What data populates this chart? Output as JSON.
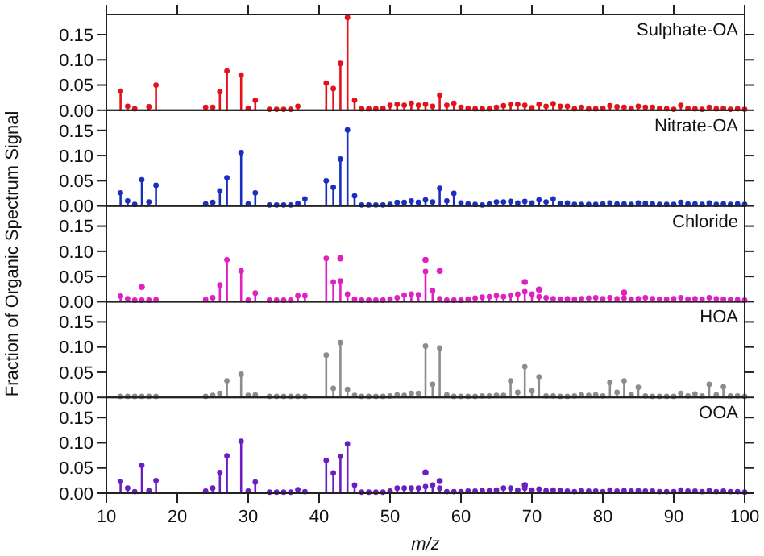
{
  "chart_data": [
    {
      "type": "lollipop",
      "title": "Sulphate-OA",
      "ylabel": "Fraction of Organic Spectrum Signal",
      "marker": "circle",
      "tick_labels": "y",
      "xlim": [
        10,
        100
      ],
      "xticks": [
        10,
        20,
        30,
        40,
        50,
        60,
        70,
        80,
        90,
        100
      ],
      "ylim": [
        0,
        0.19
      ],
      "yticks": [
        {
          "value": 0,
          "label": "0.00"
        },
        {
          "value": 0.05,
          "label": "0.05"
        },
        {
          "value": 0.1,
          "label": "0.10"
        },
        {
          "value": 0.15,
          "label": "0.15"
        }
      ],
      "x": [
        12,
        13,
        14,
        16,
        17,
        24,
        25,
        26,
        27,
        29,
        30,
        31,
        33,
        34,
        35,
        36,
        37,
        41,
        42,
        43,
        44,
        45,
        46,
        47,
        48,
        49,
        50,
        51,
        52,
        53,
        54,
        55,
        56,
        57,
        58,
        59,
        60,
        61,
        62,
        63,
        64,
        65,
        66,
        67,
        68,
        69,
        70,
        71,
        72,
        73,
        74,
        75,
        76,
        77,
        78,
        79,
        80,
        81,
        82,
        83,
        84,
        85,
        86,
        87,
        88,
        89,
        90,
        91,
        92,
        93,
        94,
        95,
        96,
        97,
        98,
        99,
        100
      ],
      "series": [
        {
          "color": "#e3121b",
          "values": [
            0.038,
            0.008,
            0.003,
            0.007,
            0.05,
            0.006,
            0.006,
            0.037,
            0.078,
            0.07,
            0.004,
            0.02,
            0.002,
            0.002,
            0.002,
            0.002,
            0.008,
            0.054,
            0.043,
            0.093,
            0.184,
            0.02,
            0.003,
            0.003,
            0.003,
            0.004,
            0.01,
            0.012,
            0.01,
            0.014,
            0.01,
            0.012,
            0.008,
            0.03,
            0.01,
            0.014,
            0.006,
            0.004,
            0.003,
            0.003,
            0.003,
            0.006,
            0.009,
            0.012,
            0.012,
            0.01,
            0.005,
            0.012,
            0.008,
            0.013,
            0.008,
            0.008,
            0.003,
            0.006,
            0.003,
            0.003,
            0.004,
            0.009,
            0.007,
            0.006,
            0.004,
            0.008,
            0.006,
            0.006,
            0.004,
            0.003,
            0.002,
            0.01,
            0.004,
            0.003,
            0.002,
            0.006,
            0.003,
            0.004,
            0.002,
            0.003,
            0.002
          ]
        }
      ]
    },
    {
      "type": "lollipop",
      "title": "Nitrate-OA",
      "marker": "circle",
      "tick_labels": "y",
      "xlim": [
        10,
        100
      ],
      "xticks": [
        10,
        20,
        30,
        40,
        50,
        60,
        70,
        80,
        90,
        100
      ],
      "ylim": [
        0,
        0.19
      ],
      "yticks": [
        {
          "value": 0,
          "label": "0.00"
        },
        {
          "value": 0.05,
          "label": "0.05"
        },
        {
          "value": 0.1,
          "label": "0.10"
        },
        {
          "value": 0.15,
          "label": "0.15"
        }
      ],
      "x": [
        12,
        13,
        14,
        15,
        16,
        17,
        24,
        25,
        26,
        27,
        29,
        30,
        31,
        33,
        34,
        35,
        36,
        37,
        38,
        41,
        42,
        43,
        44,
        45,
        46,
        47,
        48,
        49,
        50,
        51,
        52,
        53,
        54,
        55,
        56,
        57,
        58,
        59,
        60,
        61,
        62,
        63,
        64,
        65,
        66,
        67,
        68,
        69,
        70,
        71,
        72,
        73,
        74,
        75,
        76,
        77,
        78,
        79,
        80,
        81,
        82,
        83,
        84,
        85,
        86,
        87,
        88,
        89,
        90,
        91,
        92,
        93,
        94,
        95,
        96,
        97,
        98,
        99,
        100
      ],
      "series": [
        {
          "color": "#1a2fbf",
          "values": [
            0.026,
            0.01,
            0.003,
            0.052,
            0.008,
            0.041,
            0.004,
            0.007,
            0.03,
            0.056,
            0.106,
            0.004,
            0.026,
            0.002,
            0.002,
            0.002,
            0.002,
            0.005,
            0.014,
            0.05,
            0.037,
            0.093,
            0.151,
            0.02,
            0.002,
            0.002,
            0.002,
            0.002,
            0.003,
            0.007,
            0.007,
            0.01,
            0.007,
            0.012,
            0.008,
            0.035,
            0.01,
            0.025,
            0.006,
            0.004,
            0.003,
            0.002,
            0.004,
            0.008,
            0.008,
            0.009,
            0.006,
            0.009,
            0.006,
            0.012,
            0.008,
            0.014,
            0.005,
            0.006,
            0.003,
            0.003,
            0.003,
            0.003,
            0.004,
            0.006,
            0.004,
            0.004,
            0.003,
            0.006,
            0.005,
            0.004,
            0.003,
            0.003,
            0.003,
            0.007,
            0.004,
            0.004,
            0.003,
            0.006,
            0.003,
            0.004,
            0.003,
            0.004,
            0.003
          ]
        }
      ]
    },
    {
      "type": "lollipop",
      "title": "Chloride",
      "marker": "circle",
      "tick_labels": "y",
      "xlim": [
        10,
        100
      ],
      "xticks": [
        10,
        20,
        30,
        40,
        50,
        60,
        70,
        80,
        90,
        100
      ],
      "ylim": [
        0,
        0.19
      ],
      "yticks": [
        {
          "value": 0,
          "label": "0.00"
        },
        {
          "value": 0.05,
          "label": "0.05"
        },
        {
          "value": 0.1,
          "label": "0.10"
        },
        {
          "value": 0.15,
          "label": "0.15"
        }
      ],
      "x": [
        12,
        13,
        14,
        15,
        16,
        17,
        24,
        25,
        26,
        27,
        29,
        30,
        31,
        33,
        34,
        35,
        36,
        37,
        38,
        41,
        42,
        43,
        44,
        45,
        46,
        47,
        48,
        49,
        50,
        51,
        52,
        53,
        54,
        55,
        56,
        57,
        58,
        59,
        60,
        61,
        62,
        63,
        64,
        65,
        66,
        67,
        68,
        69,
        70,
        71,
        72,
        73,
        74,
        75,
        76,
        77,
        78,
        79,
        80,
        81,
        82,
        83,
        84,
        85,
        86,
        87,
        88,
        89,
        90,
        91,
        92,
        93,
        94,
        95,
        96,
        97,
        98,
        99,
        100
      ],
      "series": [
        {
          "color": "#e020c0",
          "values": [
            0.011,
            0.006,
            0.003,
            0.003,
            0.003,
            0.004,
            0.004,
            0.008,
            0.033,
            0.083,
            0.061,
            0.003,
            0.017,
            0.003,
            0.003,
            0.003,
            0.003,
            0.012,
            0.012,
            0.086,
            0.039,
            0.041,
            0.015,
            0.005,
            0.003,
            0.003,
            0.003,
            0.003,
            0.005,
            0.008,
            0.013,
            0.015,
            0.014,
            0.06,
            0.022,
            0.006,
            0.003,
            0.003,
            0.003,
            0.005,
            0.007,
            0.009,
            0.01,
            0.012,
            0.01,
            0.013,
            0.015,
            0.02,
            0.015,
            0.01,
            0.008,
            0.006,
            0.005,
            0.006,
            0.005,
            0.006,
            0.007,
            0.008,
            0.006,
            0.008,
            0.006,
            0.007,
            0.005,
            0.006,
            0.008,
            0.006,
            0.005,
            0.005,
            0.006,
            0.008,
            0.005,
            0.006,
            0.005,
            0.008,
            0.006,
            0.005,
            0.004,
            0.004,
            0.003
          ]
        },
        {
          "type": "scatter",
          "color": "#e020c0",
          "x": [
            15,
            43,
            55,
            57,
            69,
            71,
            83
          ],
          "values": [
            0.029,
            0.086,
            0.083,
            0.061,
            0.039,
            0.024,
            0.018
          ]
        }
      ]
    },
    {
      "type": "lollipop",
      "title": "HOA",
      "marker": "circle",
      "tick_labels": "y",
      "xlim": [
        10,
        100
      ],
      "xticks": [
        10,
        20,
        30,
        40,
        50,
        60,
        70,
        80,
        90,
        100
      ],
      "ylim": [
        0,
        0.19
      ],
      "yticks": [
        {
          "value": 0,
          "label": "0.00"
        },
        {
          "value": 0.05,
          "label": "0.05"
        },
        {
          "value": 0.1,
          "label": "0.10"
        },
        {
          "value": 0.15,
          "label": "0.15"
        }
      ],
      "x": [
        12,
        13,
        14,
        15,
        16,
        17,
        24,
        25,
        26,
        27,
        29,
        30,
        31,
        33,
        34,
        35,
        36,
        37,
        38,
        41,
        42,
        43,
        44,
        45,
        46,
        47,
        48,
        49,
        50,
        51,
        52,
        53,
        54,
        55,
        56,
        57,
        58,
        59,
        60,
        61,
        62,
        63,
        64,
        65,
        66,
        67,
        68,
        69,
        70,
        71,
        72,
        73,
        74,
        75,
        76,
        77,
        78,
        79,
        80,
        81,
        82,
        83,
        84,
        85,
        86,
        87,
        88,
        89,
        90,
        91,
        92,
        93,
        94,
        95,
        96,
        97,
        98,
        99,
        100
      ],
      "series": [
        {
          "color": "#8c8c8c",
          "values": [
            0.002,
            0.002,
            0.002,
            0.002,
            0.002,
            0.002,
            0.002,
            0.004,
            0.008,
            0.033,
            0.046,
            0.004,
            0.005,
            0.002,
            0.002,
            0.002,
            0.002,
            0.002,
            0.002,
            0.084,
            0.018,
            0.109,
            0.016,
            0.004,
            0.002,
            0.002,
            0.002,
            0.002,
            0.003,
            0.005,
            0.004,
            0.008,
            0.008,
            0.102,
            0.026,
            0.098,
            0.005,
            0.002,
            0.002,
            0.002,
            0.002,
            0.003,
            0.003,
            0.004,
            0.004,
            0.033,
            0.01,
            0.061,
            0.013,
            0.041,
            0.003,
            0.003,
            0.002,
            0.002,
            0.003,
            0.005,
            0.004,
            0.005,
            0.003,
            0.03,
            0.01,
            0.033,
            0.005,
            0.02,
            0.003,
            0.002,
            0.002,
            0.002,
            0.002,
            0.008,
            0.003,
            0.007,
            0.003,
            0.026,
            0.005,
            0.021,
            0.003,
            0.003,
            0.002
          ]
        }
      ]
    },
    {
      "type": "lollipop",
      "title": "OOA",
      "xlabel": "m/z",
      "marker": "circle",
      "xlim": [
        10,
        100
      ],
      "xticks": [
        10,
        20,
        30,
        40,
        50,
        60,
        70,
        80,
        90,
        100
      ],
      "ylim": [
        0,
        0.19
      ],
      "yticks": [
        {
          "value": 0,
          "label": "0.00"
        },
        {
          "value": 0.05,
          "label": "0.05"
        },
        {
          "value": 0.1,
          "label": "0.10"
        },
        {
          "value": 0.15,
          "label": "0.15"
        }
      ],
      "x": [
        12,
        13,
        14,
        15,
        16,
        17,
        24,
        25,
        26,
        27,
        29,
        30,
        31,
        33,
        34,
        35,
        36,
        37,
        38,
        41,
        42,
        43,
        44,
        45,
        46,
        47,
        48,
        49,
        50,
        51,
        52,
        53,
        54,
        55,
        56,
        57,
        58,
        59,
        60,
        61,
        62,
        63,
        64,
        65,
        66,
        67,
        68,
        69,
        70,
        71,
        72,
        73,
        74,
        75,
        76,
        77,
        78,
        79,
        80,
        81,
        82,
        83,
        84,
        85,
        86,
        87,
        88,
        89,
        90,
        91,
        92,
        93,
        94,
        95,
        96,
        97,
        98,
        99,
        100
      ],
      "series": [
        {
          "color": "#6a1fc0",
          "values": [
            0.023,
            0.01,
            0.003,
            0.055,
            0.005,
            0.025,
            0.004,
            0.01,
            0.041,
            0.074,
            0.103,
            0.004,
            0.022,
            0.002,
            0.002,
            0.002,
            0.002,
            0.007,
            0.003,
            0.065,
            0.04,
            0.073,
            0.098,
            0.016,
            0.002,
            0.002,
            0.002,
            0.002,
            0.004,
            0.01,
            0.01,
            0.01,
            0.01,
            0.013,
            0.016,
            0.01,
            0.003,
            0.003,
            0.003,
            0.004,
            0.004,
            0.005,
            0.005,
            0.006,
            0.01,
            0.01,
            0.006,
            0.01,
            0.006,
            0.008,
            0.005,
            0.006,
            0.005,
            0.004,
            0.003,
            0.005,
            0.004,
            0.004,
            0.003,
            0.006,
            0.004,
            0.005,
            0.004,
            0.005,
            0.004,
            0.004,
            0.003,
            0.003,
            0.003,
            0.006,
            0.004,
            0.004,
            0.003,
            0.005,
            0.003,
            0.004,
            0.003,
            0.003,
            0.002
          ]
        },
        {
          "type": "scatter",
          "color": "#6a1fc0",
          "x": [
            55,
            57,
            69
          ],
          "values": [
            0.041,
            0.024,
            0.016
          ]
        }
      ]
    }
  ]
}
